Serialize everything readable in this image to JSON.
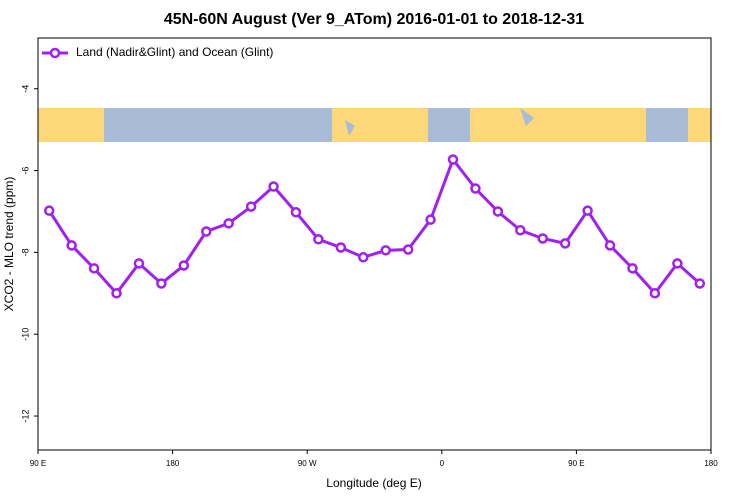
{
  "chart_data": {
    "type": "line",
    "title": "45N-60N August (Ver 9_ATom)   2016-01-01 to 2018-12-31",
    "x_label": "Longitude (deg E)",
    "y_label": "XCO2 - MLO trend (ppm)",
    "x": [
      97.5,
      112.5,
      127.5,
      142.5,
      157.5,
      172.5,
      187.5,
      202.5,
      217.5,
      232.5,
      247.5,
      262.5,
      277.5,
      292.5,
      307.5,
      322.5,
      337.5,
      352.5,
      367.5,
      382.5,
      397.5,
      412.5,
      427.5,
      442.5,
      457.5,
      472.5,
      487.5,
      502.5,
      517.5,
      532.5
    ],
    "series": [
      {
        "name": "Land (Nadir&Glint) and Ocean (Glint)",
        "color": "#a020f0",
        "values": [
          -6.98,
          -7.83,
          -8.39,
          -9.0,
          -8.27,
          -8.76,
          -8.32,
          -7.49,
          -7.29,
          -6.88,
          -6.39,
          -7.02,
          -7.68,
          -7.88,
          -8.12,
          -7.95,
          -7.93,
          -7.2,
          -5.73,
          -6.44,
          -7.0,
          -7.46,
          -7.66,
          -7.78,
          -6.98,
          -7.83,
          -8.39,
          -9.0,
          -8.27,
          -8.76
        ]
      }
    ],
    "xlim": [
      90,
      540
    ],
    "xticks": [
      {
        "value": 90,
        "label": "90 E"
      },
      {
        "value": 180,
        "label": "180"
      },
      {
        "value": 270,
        "label": "90 W"
      },
      {
        "value": 360,
        "label": "0"
      },
      {
        "value": 450,
        "label": "90 E"
      },
      {
        "value": 540,
        "label": "180"
      }
    ],
    "ylim": [
      -12.83,
      -2.76
    ],
    "yticks": [
      -12,
      -10,
      -8,
      -6,
      -4
    ],
    "legend": "top-left"
  }
}
